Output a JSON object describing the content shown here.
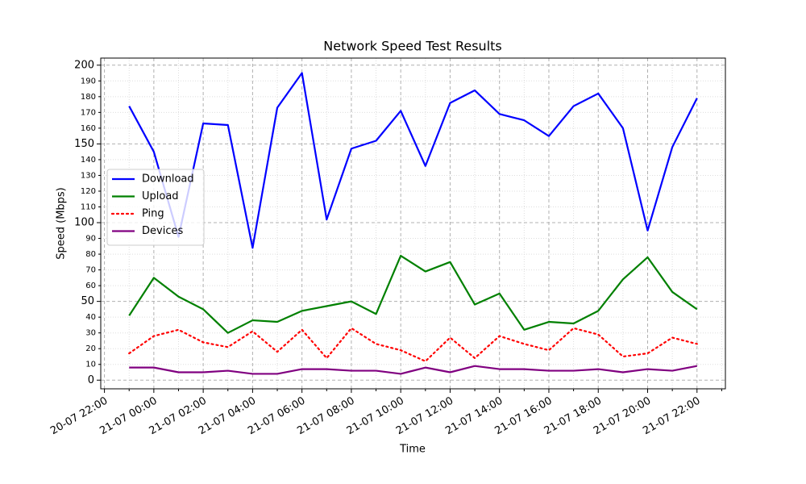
{
  "chart_data": {
    "type": "line",
    "title": "Network Speed Test Results",
    "xlabel": "Time",
    "ylabel": "Speed (Mbps)",
    "x": [
      "20-07 23:00",
      "21-07 00:00",
      "21-07 01:00",
      "21-07 02:00",
      "21-07 03:00",
      "21-07 04:00",
      "21-07 05:00",
      "21-07 06:00",
      "21-07 07:00",
      "21-07 08:00",
      "21-07 09:00",
      "21-07 10:00",
      "21-07 11:00",
      "21-07 12:00",
      "21-07 13:00",
      "21-07 14:00",
      "21-07 15:00",
      "21-07 16:00",
      "21-07 17:00",
      "21-07 18:00",
      "21-07 19:00",
      "21-07 20:00",
      "21-07 21:00",
      "21-07 22:00"
    ],
    "series": [
      {
        "name": "Download",
        "color": "#0000ff",
        "linestyle": "solid",
        "values": [
          174,
          145,
          91,
          163,
          162,
          84,
          173,
          195,
          102,
          147,
          152,
          171,
          136,
          176,
          184,
          169,
          165,
          155,
          174,
          182,
          160,
          95,
          148,
          179
        ]
      },
      {
        "name": "Upload",
        "color": "#008000",
        "linestyle": "solid",
        "values": [
          41,
          65,
          53,
          45,
          30,
          38,
          37,
          44,
          47,
          50,
          42,
          79,
          69,
          75,
          48,
          55,
          32,
          37,
          36,
          44,
          64,
          78,
          56,
          45
        ]
      },
      {
        "name": "Ping",
        "color": "#ff0000",
        "linestyle": "dotted",
        "values": [
          17,
          28,
          32,
          24,
          21,
          31,
          18,
          32,
          14,
          33,
          23,
          19,
          12,
          27,
          14,
          28,
          23,
          19,
          33,
          29,
          15,
          17,
          27,
          23
        ]
      },
      {
        "name": "Devices",
        "color": "#800080",
        "linestyle": "solid",
        "values": [
          8,
          8,
          5,
          5,
          6,
          4,
          4,
          7,
          7,
          6,
          6,
          4,
          8,
          5,
          9,
          7,
          7,
          6,
          6,
          7,
          5,
          7,
          6,
          9
        ]
      }
    ],
    "xlim": [
      "20-07 21:51",
      "21-07 23:09"
    ],
    "xticks": [
      "20-07 22:00",
      "21-07 00:00",
      "21-07 02:00",
      "21-07 04:00",
      "21-07 06:00",
      "21-07 08:00",
      "21-07 10:00",
      "21-07 12:00",
      "21-07 14:00",
      "21-07 16:00",
      "21-07 18:00",
      "21-07 20:00",
      "21-07 22:00"
    ],
    "xticks_minor": [
      "20-07 23:00",
      "21-07 01:00",
      "21-07 03:00",
      "21-07 05:00",
      "21-07 07:00",
      "21-07 09:00",
      "21-07 11:00",
      "21-07 13:00",
      "21-07 15:00",
      "21-07 17:00",
      "21-07 19:00",
      "21-07 21:00",
      "21-07 23:00"
    ],
    "ylim": [
      -5.5,
      204.5
    ],
    "yticks": [
      0,
      50,
      100,
      150,
      200
    ],
    "yticks_minor": [
      10,
      20,
      30,
      40,
      60,
      70,
      80,
      90,
      110,
      120,
      130,
      140,
      160,
      170,
      180,
      190
    ],
    "grid": true,
    "legend": "center left"
  }
}
